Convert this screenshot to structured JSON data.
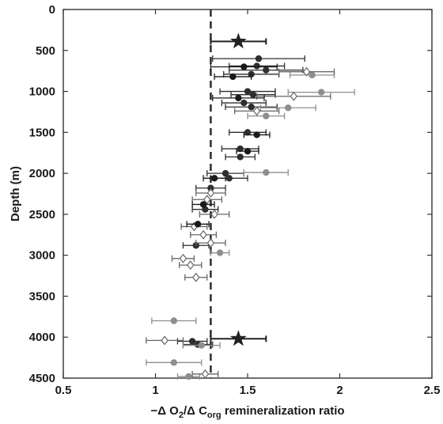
{
  "chart_data": {
    "type": "scatter",
    "title": "",
    "xlabel": {
      "prefix": "−Δ O",
      "sub1": "2",
      "mid": "/Δ C",
      "sub2": "org",
      "suffix": " remineralization ratio"
    },
    "ylabel": "Depth (m)",
    "xlim": [
      0.5,
      2.5
    ],
    "ylim": [
      4500,
      0
    ],
    "y_inverted": true,
    "xticks": [
      "0.5",
      "1",
      "1.5",
      "2",
      "2.5"
    ],
    "yticks": [
      "0",
      "500",
      "1000",
      "1500",
      "2000",
      "2500",
      "3000",
      "3500",
      "4000",
      "4500"
    ],
    "reference_line": {
      "x": 1.3,
      "style": "dashed"
    },
    "series": [
      {
        "marker": "star",
        "color": "#222222",
        "points": [
          {
            "x": 1.45,
            "y": 390,
            "xerr": 0.15
          },
          {
            "x": 1.45,
            "y": 4020,
            "xerr": 0.15
          }
        ]
      },
      {
        "marker": "circle",
        "color": "#2e2e2e",
        "points": [
          {
            "x": 1.56,
            "y": 600,
            "xerr": 0.25
          },
          {
            "x": 1.55,
            "y": 690,
            "xerr": 0.15
          },
          {
            "x": 1.6,
            "y": 740,
            "xerr": 0.2
          },
          {
            "x": 1.52,
            "y": 790,
            "xerr": 0.15
          },
          {
            "x": 1.5,
            "y": 1000,
            "xerr": 0.15
          },
          {
            "x": 1.53,
            "y": 1040,
            "xerr": 0.12
          },
          {
            "x": 1.48,
            "y": 1140,
            "xerr": 0.12
          },
          {
            "x": 1.52,
            "y": 1190,
            "xerr": 0.14
          },
          {
            "x": 1.5,
            "y": 1500,
            "xerr": 0.1
          },
          {
            "x": 1.46,
            "y": 1700,
            "xerr": 0.1
          },
          {
            "x": 1.46,
            "y": 1800,
            "xerr": 0.08
          },
          {
            "x": 1.38,
            "y": 2000,
            "xerr": 0.1
          },
          {
            "x": 1.4,
            "y": 2060,
            "xerr": 0.1
          },
          {
            "x": 1.3,
            "y": 2180,
            "xerr": 0.08
          },
          {
            "x": 1.27,
            "y": 2440,
            "xerr": 0.07
          },
          {
            "x": 1.22,
            "y": 2880,
            "xerr": 0.07
          },
          {
            "x": 1.2,
            "y": 4050,
            "xerr": 0.08
          },
          {
            "x": 1.23,
            "y": 4090,
            "xerr": 0.08
          }
        ]
      },
      {
        "marker": "circle",
        "color": "#8e8e8e",
        "points": [
          {
            "x": 1.85,
            "y": 800,
            "xerr": 0.12
          },
          {
            "x": 1.9,
            "y": 1010,
            "xerr": 0.18
          },
          {
            "x": 1.72,
            "y": 1200,
            "xerr": 0.15
          },
          {
            "x": 1.6,
            "y": 1300,
            "xerr": 0.1
          },
          {
            "x": 1.6,
            "y": 1990,
            "xerr": 0.12
          },
          {
            "x": 1.35,
            "y": 2970,
            "xerr": 0.05
          },
          {
            "x": 1.1,
            "y": 3800,
            "xerr": 0.12
          },
          {
            "x": 1.1,
            "y": 4310,
            "xerr": 0.15
          },
          {
            "x": 1.25,
            "y": 4100,
            "xerr": 0.1
          },
          {
            "x": 1.18,
            "y": 4480,
            "xerr": 0.06
          }
        ]
      },
      {
        "marker": "diamond",
        "color": "#666666",
        "points": [
          {
            "x": 1.82,
            "y": 760,
            "xerr": 0.15
          },
          {
            "x": 1.75,
            "y": 1060,
            "xerr": 0.2
          },
          {
            "x": 1.55,
            "y": 1240,
            "xerr": 0.12
          },
          {
            "x": 1.3,
            "y": 2240,
            "xerr": 0.08
          },
          {
            "x": 1.28,
            "y": 2320,
            "xerr": 0.08
          },
          {
            "x": 1.32,
            "y": 2500,
            "xerr": 0.08
          },
          {
            "x": 1.21,
            "y": 2650,
            "xerr": 0.07
          },
          {
            "x": 1.26,
            "y": 2750,
            "xerr": 0.07
          },
          {
            "x": 1.3,
            "y": 2850,
            "xerr": 0.08
          },
          {
            "x": 1.15,
            "y": 3040,
            "xerr": 0.06
          },
          {
            "x": 1.19,
            "y": 3120,
            "xerr": 0.06
          },
          {
            "x": 1.22,
            "y": 3270,
            "xerr": 0.06
          },
          {
            "x": 1.05,
            "y": 4040,
            "xerr": 0.1
          },
          {
            "x": 1.27,
            "y": 4450,
            "xerr": 0.07
          }
        ]
      },
      {
        "marker": "circle",
        "color": "#1a1a1a",
        "points": [
          {
            "x": 1.48,
            "y": 700,
            "xerr": 0.18
          },
          {
            "x": 1.42,
            "y": 820,
            "xerr": 0.1
          },
          {
            "x": 1.45,
            "y": 1080,
            "xerr": 0.14
          },
          {
            "x": 1.55,
            "y": 1530,
            "xerr": 0.07
          },
          {
            "x": 1.5,
            "y": 1730,
            "xerr": 0.06
          },
          {
            "x": 1.32,
            "y": 2060,
            "xerr": 0.06
          },
          {
            "x": 1.26,
            "y": 2380,
            "xerr": 0.06
          },
          {
            "x": 1.23,
            "y": 2620,
            "xerr": 0.06
          }
        ]
      }
    ]
  }
}
